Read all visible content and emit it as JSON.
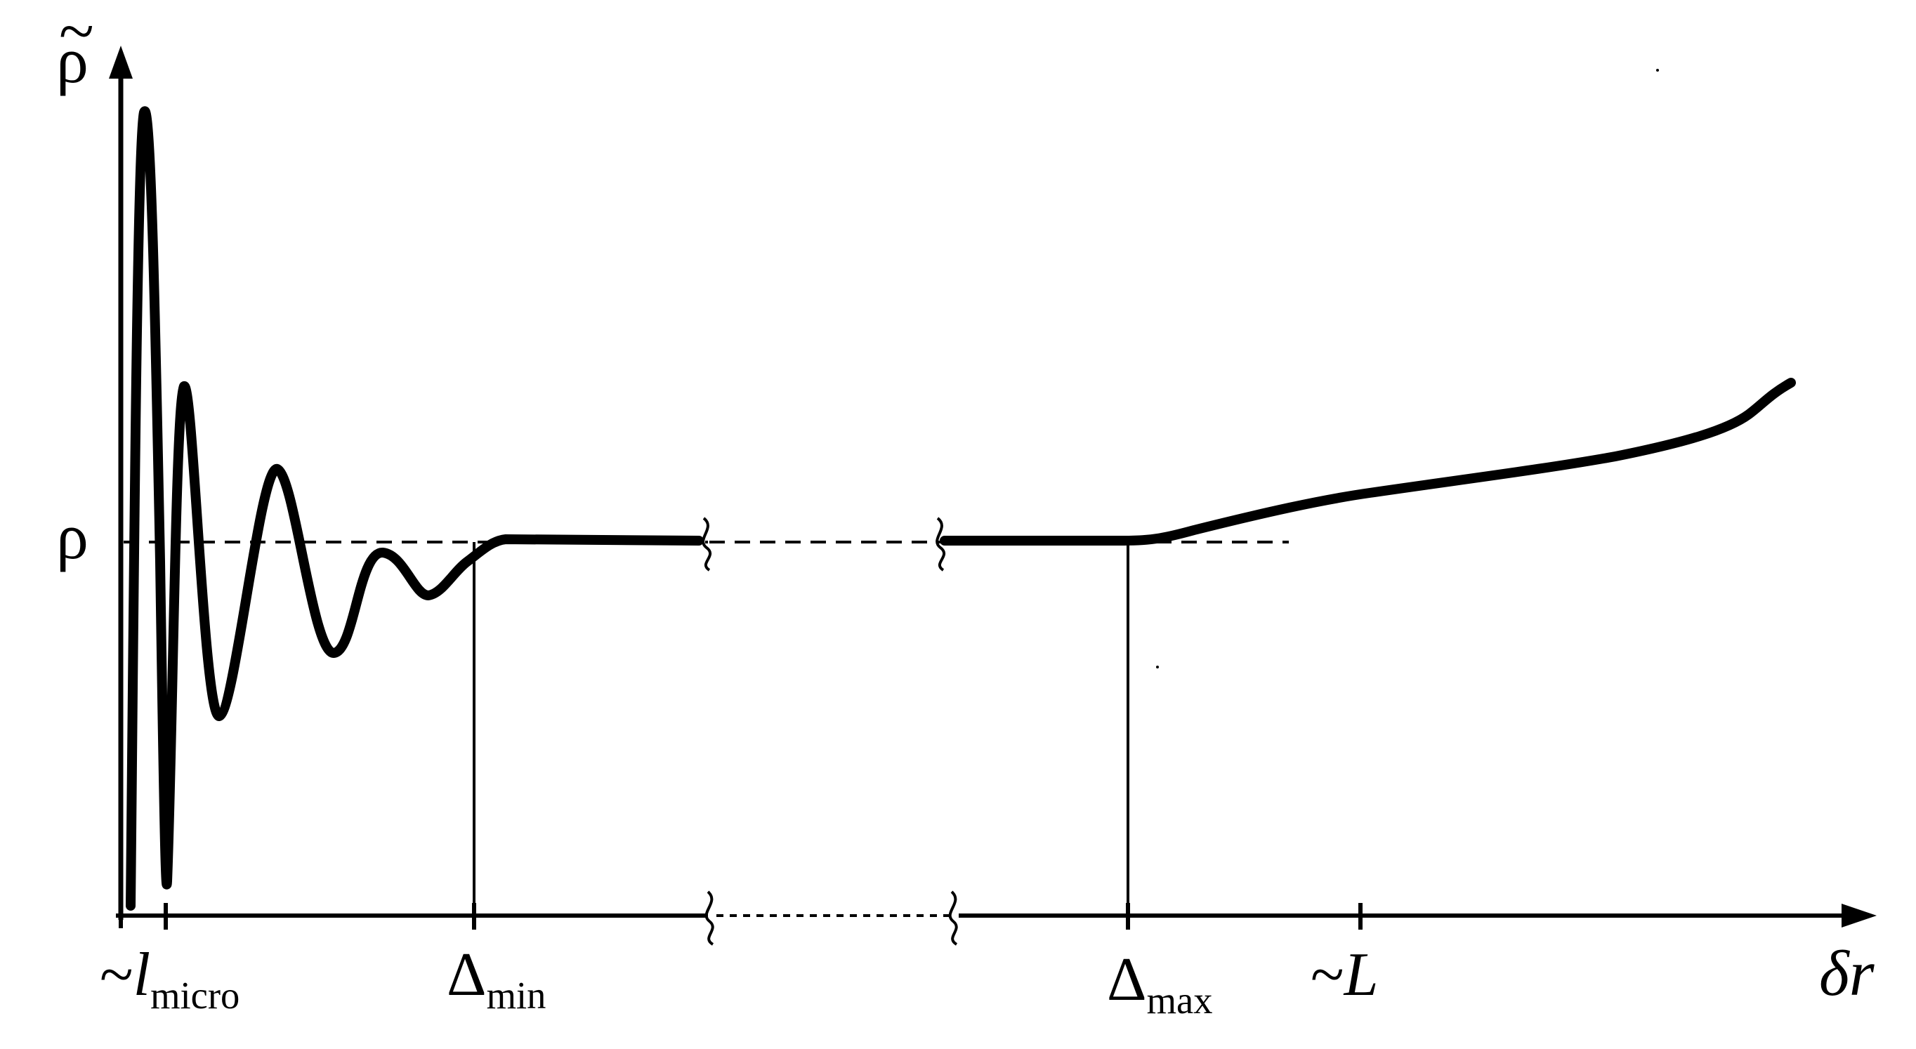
{
  "diagram": {
    "y_axis_label": "ρ",
    "y_axis_tilde": "~",
    "reference_level_label": "ρ",
    "x_axis_label": "δr",
    "x_ticks": [
      {
        "prefix": "~",
        "symbol": "l",
        "subscript": "micro"
      },
      {
        "symbol": "Δ",
        "subscript": "min"
      },
      {
        "symbol": "Δ",
        "subscript": "max"
      },
      {
        "prefix": "~",
        "symbol": "L"
      }
    ]
  }
}
